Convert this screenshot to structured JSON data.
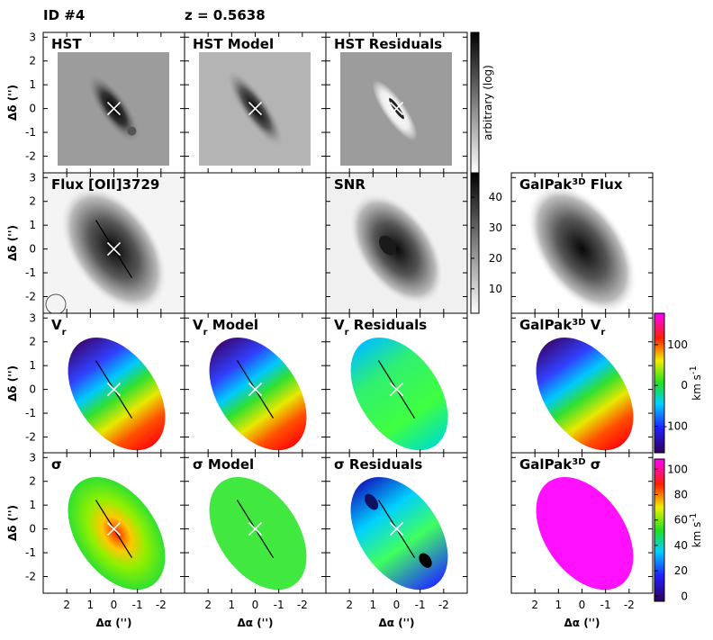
{
  "header": {
    "id": "ID #4",
    "redshift": "z = 0.5638"
  },
  "axes": {
    "x_label": "Δα ('')",
    "y_label": "Δδ ('')",
    "xlim": [
      3,
      -3
    ],
    "ylim": [
      -2.7,
      3.2
    ],
    "xticks": [
      2,
      1,
      0,
      -1,
      -2
    ],
    "yticks": [
      3,
      2,
      1,
      0,
      -1,
      -2
    ]
  },
  "panels": [
    {
      "title": [
        {
          "text": "HST"
        }
      ]
    },
    {
      "title": [
        {
          "text": "HST Model"
        }
      ]
    },
    {
      "title": [
        {
          "text": "HST Residuals"
        }
      ]
    },
    {
      "title": [
        {
          "text": "Flux [OII]3729"
        }
      ]
    },
    {
      "title": [
        {
          "text": "SNR"
        }
      ]
    },
    {
      "title": [
        {
          "text": "GalPak"
        },
        {
          "text": "3D",
          "sup": true
        },
        {
          "text": " Flux"
        }
      ]
    },
    {
      "title": [
        {
          "text": "V"
        },
        {
          "text": "r",
          "sub": true
        }
      ]
    },
    {
      "title": [
        {
          "text": "V"
        },
        {
          "text": "r",
          "sub": true
        },
        {
          "text": " Model"
        }
      ]
    },
    {
      "title": [
        {
          "text": "V"
        },
        {
          "text": "r",
          "sub": true
        },
        {
          "text": " Residuals"
        }
      ]
    },
    {
      "title": [
        {
          "text": "GalPak"
        },
        {
          "text": "3D",
          "sup": true
        },
        {
          "text": " V"
        },
        {
          "text": "r",
          "sub": true
        }
      ]
    },
    {
      "title": [
        {
          "text": "σ"
        }
      ]
    },
    {
      "title": [
        {
          "text": "σ"
        },
        {
          "text": " Model"
        }
      ]
    },
    {
      "title": [
        {
          "text": "σ"
        },
        {
          "text": " Residuals"
        }
      ]
    },
    {
      "title": [
        {
          "text": "GalPak"
        },
        {
          "text": "3D",
          "sup": true
        },
        {
          "text": " σ"
        }
      ]
    }
  ],
  "colorbars": [
    {
      "colormap": "gray",
      "label": [
        {
          "text": "arbitrary (log)"
        }
      ]
    },
    {
      "colormap": "gray",
      "lim": [
        2,
        48
      ],
      "ticks": [
        10,
        20,
        30,
        40
      ]
    },
    {
      "colormap": "rainbow",
      "lim": [
        -165,
        177
      ],
      "ticks": [
        100,
        0,
        -100
      ],
      "label": [
        {
          "text": "km s"
        },
        {
          "text": "-1",
          "sup": true
        }
      ]
    },
    {
      "colormap": "rainbow",
      "lim": [
        -4,
        108
      ],
      "ticks": [
        100,
        80,
        60,
        40,
        20,
        0
      ],
      "label": [
        {
          "text": "km s"
        },
        {
          "text": "-1",
          "sup": true
        }
      ]
    }
  ]
}
